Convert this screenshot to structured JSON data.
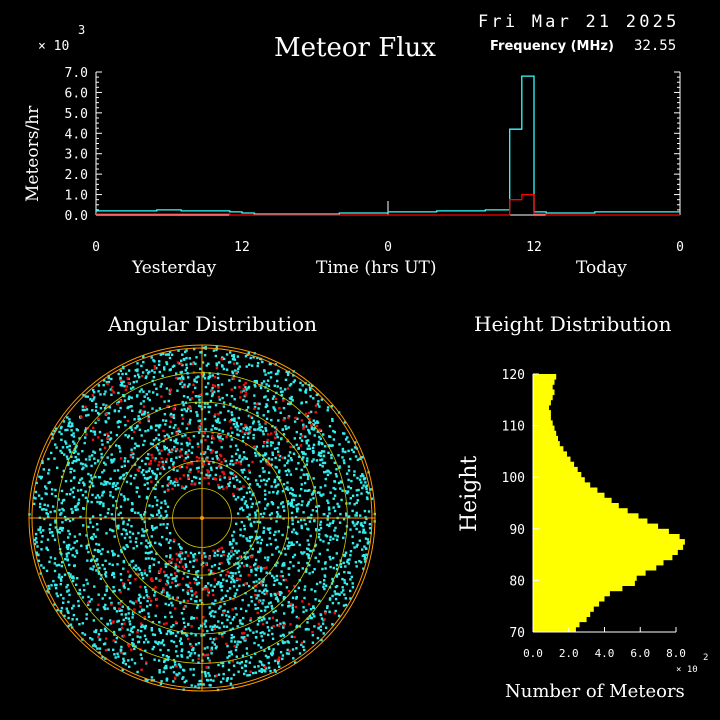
{
  "header": {
    "date": "Fri Mar 21 2025",
    "title": "Meteor Flux",
    "frequency_label": "Frequency (MHz)",
    "frequency_value": "32.55"
  },
  "colors": {
    "background": "#000000",
    "flux_cyan": "#33ffff",
    "flux_red": "#ff0000",
    "radar_cyan": "#33eeee",
    "radar_red": "#ee1111",
    "rings": "#ff9900",
    "grid_yellow": "#cccc00",
    "height_bars": "#ffff00"
  },
  "chart_data": [
    {
      "type": "line",
      "title": "Meteor Flux",
      "ylabel": "Meteors/hr",
      "xlabel": "Time (hrs UT)",
      "y_multiplier": "× 10",
      "y_multiplier_exp": "3",
      "ylim": [
        0,
        7.0
      ],
      "yticks": [
        "0.0",
        "1.0",
        "2.0",
        "3.0",
        "4.0",
        "5.0",
        "6.0",
        "7.0"
      ],
      "xlim": [
        0,
        48
      ],
      "xticks": [
        "0",
        "12",
        "0",
        "12",
        "0"
      ],
      "day_labels": [
        "Yesterday",
        "Today"
      ],
      "x_hours": [
        0,
        1,
        2,
        3,
        4,
        5,
        6,
        7,
        8,
        9,
        10,
        11,
        12,
        13,
        14,
        15,
        16,
        17,
        18,
        19,
        20,
        21,
        22,
        23,
        24,
        25,
        26,
        27,
        28,
        29,
        30,
        31,
        32,
        33,
        34,
        35,
        36,
        37,
        38,
        39,
        40,
        41,
        42,
        43,
        44,
        45,
        46,
        47,
        48
      ],
      "series": [
        {
          "color": "#33ffff",
          "values": [
            0.2,
            0.2,
            0.2,
            0.2,
            0.2,
            0.25,
            0.25,
            0.2,
            0.2,
            0.2,
            0.2,
            0.15,
            0.1,
            0.05,
            0.05,
            0.05,
            0.05,
            0.05,
            0.05,
            0.05,
            0.1,
            0.1,
            0.1,
            0.1,
            0.15,
            0.15,
            0.15,
            0.15,
            0.2,
            0.2,
            0.2,
            0.2,
            0.25,
            0.25,
            4.2,
            6.8,
            0.15,
            0.1,
            0.1,
            0.1,
            0.1,
            0.15,
            0.15,
            0.15,
            0.15,
            0.15,
            0.15,
            0.15,
            0.15
          ]
        },
        {
          "color": "#ff0000",
          "values": [
            0.05,
            0.05,
            0.05,
            0.05,
            0.05,
            0.05,
            0.05,
            0.05,
            0.05,
            0.05,
            0.05,
            0.0,
            0.0,
            0.0,
            0.0,
            0.0,
            0.0,
            0.0,
            0.0,
            0.0,
            0.0,
            0.0,
            0.0,
            0.0,
            0.0,
            0.0,
            0.0,
            0.0,
            0.0,
            0.0,
            0.0,
            0.0,
            0.0,
            0.0,
            0.75,
            1.0,
            0.05,
            0.0,
            0.0,
            0.0,
            0.0,
            0.0,
            0.0,
            0.0,
            0.0,
            0.0,
            0.0,
            0.0,
            0.0
          ]
        }
      ]
    },
    {
      "type": "scatter",
      "title": "Angular Distribution",
      "series": [
        {
          "color": "#33eeee",
          "count": 3200
        },
        {
          "color": "#ee1111",
          "count": 420
        }
      ]
    },
    {
      "type": "bar",
      "title": "Height Distribution",
      "ylabel": "Height",
      "xlabel": "Number of Meteors",
      "x_multiplier": "× 10",
      "x_multiplier_exp": "2",
      "xlim": [
        0,
        8.0
      ],
      "xticks": [
        "0.0",
        "2.0",
        "4.0",
        "6.0",
        "8.0"
      ],
      "ylim": [
        70,
        120
      ],
      "yticks": [
        "70",
        "80",
        "90",
        "100",
        "110",
        "120"
      ],
      "heights": [
        70,
        71,
        72,
        73,
        74,
        75,
        76,
        77,
        78,
        79,
        80,
        81,
        82,
        83,
        84,
        85,
        86,
        87,
        88,
        89,
        90,
        91,
        92,
        93,
        94,
        95,
        96,
        97,
        98,
        99,
        100,
        101,
        102,
        103,
        104,
        105,
        106,
        107,
        108,
        109,
        110,
        111,
        112,
        113,
        114,
        115,
        116,
        117,
        118,
        119
      ],
      "values": [
        2.4,
        2.6,
        3.0,
        3.2,
        3.4,
        3.7,
        4.0,
        4.3,
        5.0,
        5.7,
        5.8,
        6.3,
        6.9,
        7.3,
        7.8,
        8.1,
        8.4,
        8.5,
        8.2,
        7.6,
        7.0,
        6.4,
        5.9,
        5.3,
        4.8,
        4.4,
        4.0,
        3.6,
        3.2,
        2.9,
        2.7,
        2.5,
        2.3,
        2.1,
        1.9,
        1.7,
        1.5,
        1.4,
        1.3,
        1.2,
        1.1,
        1.0,
        1.0,
        0.9,
        1.0,
        1.1,
        1.2,
        1.1,
        1.2,
        1.3
      ]
    }
  ]
}
